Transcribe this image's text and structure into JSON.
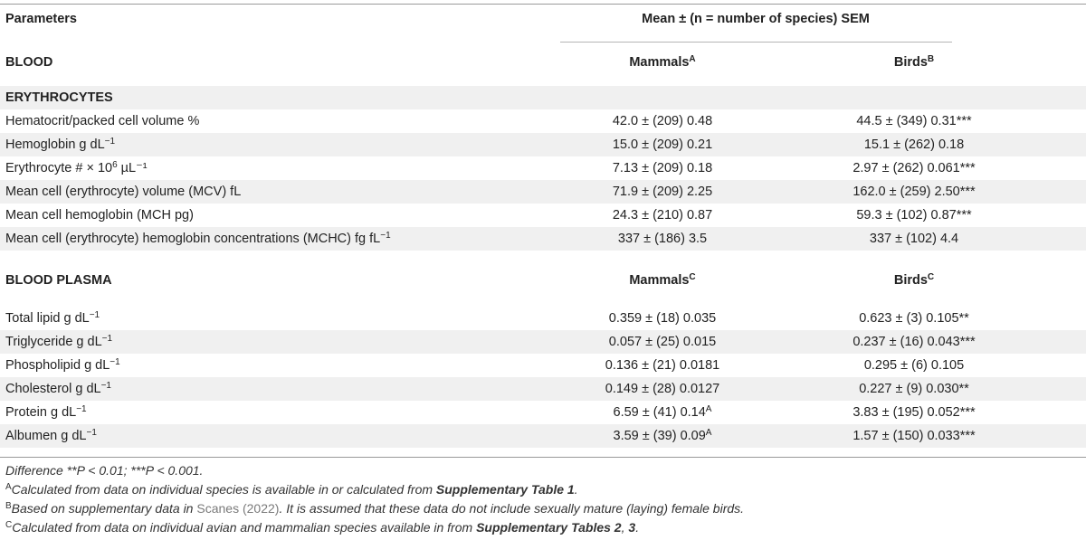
{
  "header": {
    "parameters": "Parameters",
    "mean_sem": "Mean ± (n = number of species) SEM"
  },
  "blood": {
    "title": "BLOOD",
    "mammals": "Mammals",
    "mammals_sup": "A",
    "birds": "Birds",
    "birds_sup": "B"
  },
  "erythrocytes": {
    "title": "ERYTHROCYTES",
    "rows": [
      {
        "param_pre": "Hematocrit/packed cell volume %",
        "param_sup": "",
        "param_post": "",
        "mammals": "42.0 ± (209) 0.48",
        "mammals_sup": "",
        "birds": "44.5 ± (349) 0.31***"
      },
      {
        "param_pre": "Hemoglobin g dL",
        "param_sup": "−1",
        "param_post": "",
        "mammals": "15.0 ± (209) 0.21",
        "mammals_sup": "",
        "birds": "15.1 ± (262) 0.18"
      },
      {
        "param_pre": "Erythrocyte # × 10",
        "param_sup": "6",
        "param_post": " µL⁻¹",
        "mammals": "7.13 ± (209) 0.18",
        "mammals_sup": "",
        "birds": "2.97 ± (262) 0.061***"
      },
      {
        "param_pre": "Mean cell (erythrocyte) volume (MCV) fL",
        "param_sup": "",
        "param_post": "",
        "mammals": "71.9 ± (209) 2.25",
        "mammals_sup": "",
        "birds": "162.0 ± (259) 2.50***"
      },
      {
        "param_pre": "Mean cell hemoglobin (MCH pg)",
        "param_sup": "",
        "param_post": "",
        "mammals": "24.3 ± (210) 0.87",
        "mammals_sup": "",
        "birds": "59.3 ± (102) 0.87***"
      },
      {
        "param_pre": "Mean cell (erythrocyte) hemoglobin concentrations (MCHC) fg fL",
        "param_sup": "−1",
        "param_post": "",
        "mammals": "337 ± (186) 3.5",
        "mammals_sup": "",
        "birds": "337 ± (102) 4.4"
      }
    ]
  },
  "plasma": {
    "title": "BLOOD PLASMA",
    "mammals": "Mammals",
    "mammals_sup": "C",
    "birds": "Birds",
    "birds_sup": "C",
    "rows": [
      {
        "param_pre": "Total lipid g dL",
        "param_sup": "−1",
        "param_post": "",
        "mammals": "0.359 ± (18) 0.035",
        "mammals_sup": "",
        "birds": "0.623 ± (3) 0.105**"
      },
      {
        "param_pre": "Triglyceride g dL",
        "param_sup": "−1",
        "param_post": "",
        "mammals": "0.057 ± (25) 0.015",
        "mammals_sup": "",
        "birds": "0.237 ± (16) 0.043***"
      },
      {
        "param_pre": "Phospholipid g dL",
        "param_sup": "−1",
        "param_post": "",
        "mammals": "0.136 ± (21) 0.0181",
        "mammals_sup": "",
        "birds": "0.295 ± (6) 0.105"
      },
      {
        "param_pre": "Cholesterol g dL",
        "param_sup": "−1",
        "param_post": "",
        "mammals": "0.149 ± (28) 0.0127",
        "mammals_sup": "",
        "birds": "0.227 ± (9) 0.030**"
      },
      {
        "param_pre": "Protein g dL",
        "param_sup": "−1",
        "param_post": "",
        "mammals": "6.59 ± (41) 0.14",
        "mammals_sup": "A",
        "birds": "3.83 ± (195) 0.052***"
      },
      {
        "param_pre": "Albumen g dL",
        "param_sup": "−1",
        "param_post": "",
        "mammals": "3.59 ± (39) 0.09",
        "mammals_sup": "A",
        "birds": "1.57 ± (150) 0.033***"
      }
    ]
  },
  "footnotes": {
    "significance": "Difference **P < 0.01; ***P < 0.001.",
    "a_mark": "A",
    "a_text": "Calculated from data on individual species is available in or calculated from ",
    "a_bold": "Supplementary Table 1",
    "a_end": ".",
    "b_mark": "B",
    "b_text1": "Based on supplementary data in ",
    "b_ref": "Scanes (2022)",
    "b_text2": ". It is assumed that these data do not include sexually mature (laying) female birds.",
    "c_mark": "C",
    "c_text": "Calculated from data on individual avian and mammalian species available in from ",
    "c_bold1": "Supplementary Tables 2",
    "c_sep": ", ",
    "c_bold2": "3",
    "c_end": "."
  }
}
